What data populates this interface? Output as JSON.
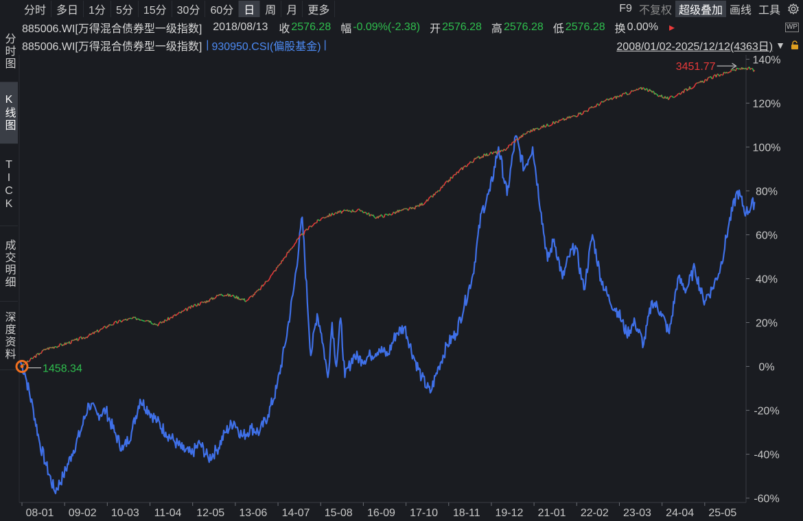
{
  "toolbar": {
    "periods": [
      "分时",
      "多日",
      "1分",
      "5分",
      "15分",
      "30分",
      "60分",
      "日",
      "周",
      "月",
      "更多"
    ],
    "active_period": "日",
    "tools": [
      "F9",
      "不复权",
      "超级叠加",
      "画线",
      "工具"
    ],
    "settings_icon": "gear-icon"
  },
  "left_tabs": [
    {
      "label": "分时图",
      "active": false
    },
    {
      "label": "K线图",
      "active": true
    },
    {
      "label": "TICK",
      "active": false
    },
    {
      "label": "成交明细",
      "active": false
    },
    {
      "label": "深度资料",
      "active": false
    }
  ],
  "quote": {
    "name": "885006.WI[万得混合债券型一级指数]",
    "date": "2018/08/13",
    "close_label": "收",
    "close": "2576.28",
    "change_label": "幅",
    "change": "-0.09%(-2.38)",
    "open_label": "开",
    "open": "2576.28",
    "high_label": "高",
    "high": "2576.28",
    "low_label": "低",
    "low": "2576.28",
    "turnover_label": "换",
    "turnover": "0.00%",
    "menu_arrow": "▸",
    "wp_badge": "WP"
  },
  "overlay": {
    "main_label": "885006.WI[万得混合债券型一级指数]",
    "sep": "|",
    "overlay_label": "930950.CSI(偏股基金)",
    "sep2": "|",
    "range": "2008/01/02-2025/12/12(4363日)",
    "colors": {
      "main_up": "#ea3a3a",
      "main_down": "#2fbf4e",
      "overlay": "#3f70e8"
    }
  },
  "chart_data": {
    "type": "line",
    "yunit": "%",
    "ylim": [
      -62,
      142
    ],
    "yticks": [
      "140%",
      "120%",
      "100%",
      "80%",
      "60%",
      "40%",
      "20%",
      "0%",
      "-20%",
      "-40%",
      "-60%"
    ],
    "xticks": [
      "08-01",
      "09-02",
      "10-03",
      "11-04",
      "12-05",
      "13-06",
      "14-07",
      "15-08",
      "16-09",
      "17-10",
      "18-11",
      "19-12",
      "21-01",
      "22-02",
      "23-03",
      "24-04",
      "25-05"
    ],
    "annotations": {
      "max_label": "3451.77",
      "min_label": "1458.34"
    },
    "series": [
      {
        "x": [
          0,
          0.1,
          0.3,
          0.45,
          0.6,
          0.8,
          1.0,
          1.3,
          1.6,
          1.9,
          2.1,
          2.4,
          2.7,
          3.0,
          3.2,
          3.5,
          3.8,
          4.1,
          4.4,
          4.7,
          5.0,
          5.3,
          5.6,
          5.9,
          6.2,
          6.5,
          6.8,
          7.1,
          7.4,
          7.7,
          8.0,
          8.3,
          8.6,
          8.9,
          9.2,
          9.5,
          9.8,
          10.1,
          10.4,
          10.7,
          11.0,
          11.3,
          11.6,
          11.9,
          12.2,
          12.5,
          12.8,
          13.1,
          13.4,
          13.7,
          14.0,
          14.3,
          14.6,
          14.9,
          15.2,
          15.5,
          15.8,
          16.1,
          16.4,
          16.7,
          17.0,
          17.2
        ],
        "values": [
          0,
          1,
          4,
          6,
          8,
          9,
          10,
          12,
          14,
          17,
          19,
          21,
          22,
          21,
          19,
          22,
          25,
          28,
          30,
          33,
          32,
          30,
          35,
          42,
          50,
          58,
          64,
          68,
          70,
          71,
          71,
          68,
          69,
          71,
          72,
          75,
          80,
          86,
          91,
          95,
          97,
          98,
          103,
          107,
          109,
          111,
          113,
          115,
          118,
          121,
          123,
          125,
          127,
          124,
          122,
          125,
          128,
          131,
          133,
          135,
          136,
          135
        ]
      },
      {
        "x": [
          0,
          0.1,
          0.3,
          0.45,
          0.6,
          0.8,
          1.0,
          1.2,
          1.4,
          1.6,
          1.8,
          2.0,
          2.2,
          2.4,
          2.6,
          2.8,
          3.0,
          3.2,
          3.4,
          3.6,
          3.8,
          4.0,
          4.2,
          4.4,
          4.6,
          4.8,
          5.0,
          5.2,
          5.4,
          5.6,
          5.8,
          6.0,
          6.2,
          6.4,
          6.6,
          6.8,
          6.95,
          7.05,
          7.2,
          7.3,
          7.4,
          7.5,
          7.6,
          7.8,
          8.0,
          8.2,
          8.4,
          8.6,
          8.8,
          9.0,
          9.2,
          9.4,
          9.6,
          9.8,
          10.0,
          10.2,
          10.4,
          10.6,
          10.8,
          11.0,
          11.2,
          11.4,
          11.6,
          11.8,
          12.0,
          12.2,
          12.35,
          12.5,
          12.7,
          12.85,
          13.0,
          13.2,
          13.4,
          13.6,
          13.8,
          14.0,
          14.2,
          14.4,
          14.6,
          14.8,
          15.0,
          15.2,
          15.4,
          15.6,
          15.8,
          16.0,
          16.2,
          16.4,
          16.6,
          16.8,
          17.0,
          17.2
        ],
        "values": [
          2,
          -3,
          -20,
          -35,
          -45,
          -57,
          -50,
          -40,
          -30,
          -17,
          -22,
          -20,
          -30,
          -38,
          -30,
          -15,
          -20,
          -25,
          -30,
          -34,
          -38,
          -40,
          -35,
          -42,
          -38,
          -30,
          -25,
          -32,
          -28,
          -30,
          -22,
          -10,
          10,
          35,
          68,
          5,
          24,
          15,
          -5,
          20,
          0,
          22,
          -5,
          5,
          3,
          5,
          8,
          5,
          15,
          18,
          5,
          -5,
          -12,
          0,
          10,
          15,
          28,
          42,
          70,
          80,
          100,
          78,
          105,
          90,
          100,
          70,
          48,
          58,
          40,
          50,
          55,
          35,
          60,
          40,
          30,
          25,
          15,
          20,
          10,
          30,
          25,
          15,
          40,
          35,
          45,
          30,
          35,
          45,
          65,
          80,
          70,
          75
        ]
      }
    ]
  }
}
